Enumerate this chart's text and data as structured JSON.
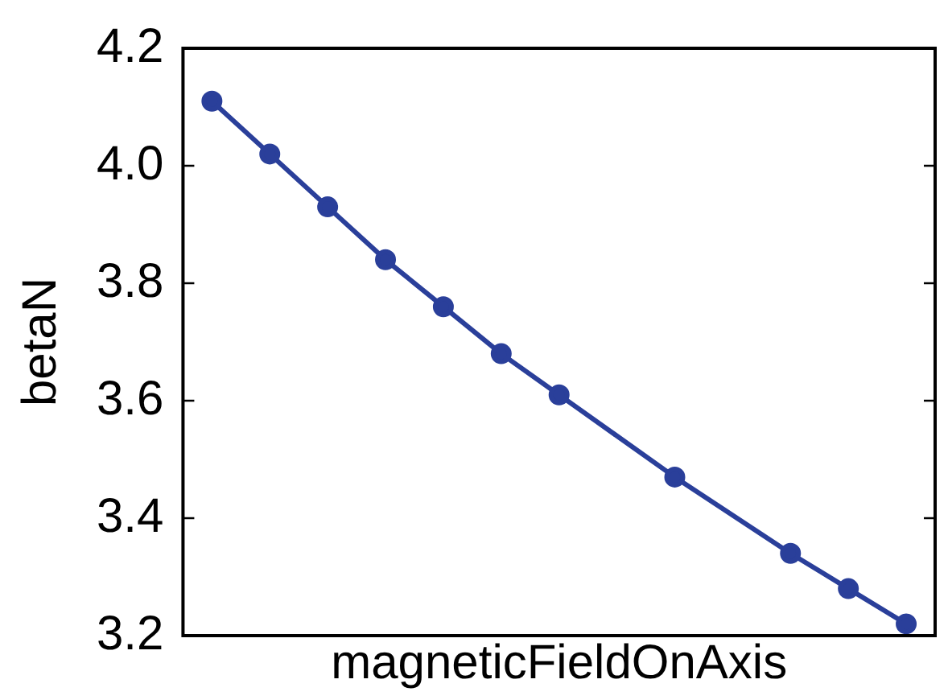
{
  "chart_data": {
    "type": "line",
    "xlabel": "magneticFieldOnAxis",
    "ylabel": "betaN",
    "categories": [
      null,
      null,
      null,
      null,
      null,
      null,
      null,
      null,
      null,
      null,
      null,
      null,
      null
    ],
    "series": [
      {
        "color": "#2a3f9a",
        "values": [
          4.11,
          4.02,
          3.93,
          3.84,
          3.76,
          3.68,
          3.61,
          null,
          3.47,
          null,
          3.34,
          3.28,
          3.22
        ]
      }
    ],
    "ylim": [
      3.2,
      4.2
    ],
    "yticks": [
      {
        "value": 3.2,
        "label": "3.2"
      },
      {
        "value": 3.4,
        "label": "3.4"
      },
      {
        "value": 3.6,
        "label": "3.6"
      },
      {
        "value": 3.8,
        "label": "3.8"
      },
      {
        "value": 4,
        "label": "4.0"
      },
      {
        "value": 4.2,
        "label": "4.2"
      }
    ],
    "tick_labels": "y",
    "grid": false,
    "legend": false,
    "marker": "circle",
    "line_style": "solid"
  }
}
